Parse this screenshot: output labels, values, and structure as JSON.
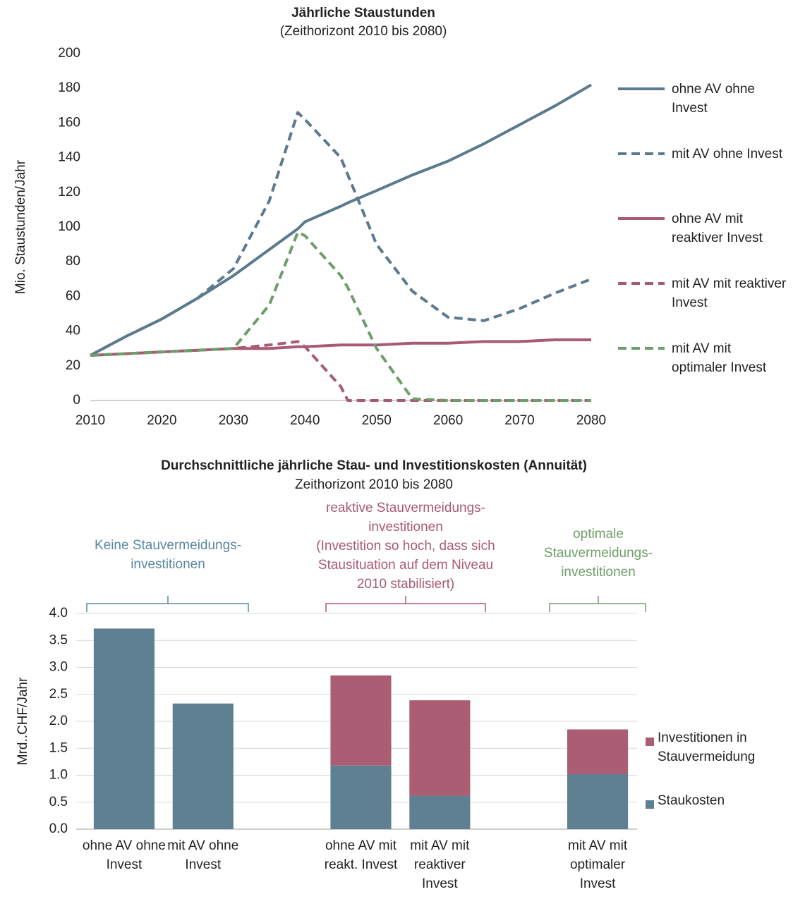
{
  "chart_data": [
    {
      "type": "line",
      "title": "Jährliche Staustunden",
      "subtitle": "(Zeithorizont 2010 bis 2080)",
      "y_label": "Mio. Staustunden/Jahr",
      "x": [
        2010,
        2015,
        2020,
        2025,
        2030,
        2035,
        2039,
        2040,
        2045,
        2046,
        2050,
        2055,
        2060,
        2065,
        2070,
        2075,
        2080
      ],
      "xlim": [
        2010,
        2080
      ],
      "xticks": [
        2010,
        2020,
        2030,
        2040,
        2050,
        2060,
        2070,
        2080
      ],
      "ylim": [
        0,
        200
      ],
      "yticks": [
        0,
        20,
        40,
        60,
        80,
        100,
        120,
        140,
        160,
        180,
        200
      ],
      "grid": false,
      "legend": "right",
      "series": [
        {
          "name": "ohne AV ohne Invest",
          "color": "#5b7a8d",
          "style": "solid",
          "values": [
            26,
            37,
            47,
            59,
            72,
            87,
            99,
            103,
            112,
            114,
            121,
            130,
            138,
            148,
            159,
            170,
            182
          ]
        },
        {
          "name": "mit AV ohne Invest",
          "color": "#5b7a8d",
          "style": "dashed",
          "values": [
            26,
            37,
            47,
            59,
            76,
            115,
            166,
            162,
            140,
            130,
            90,
            63,
            48,
            46,
            53,
            62,
            70
          ]
        },
        {
          "name": "ohne AV mit reaktiver Invest",
          "color": "#a85a73",
          "style": "solid",
          "values": [
            26,
            27,
            28,
            29,
            30,
            30,
            31,
            31,
            32,
            32,
            32,
            33,
            33,
            34,
            34,
            35,
            35
          ]
        },
        {
          "name": "mit AV mit reaktiver Invest",
          "color": "#a85a73",
          "style": "dashed",
          "values": [
            26,
            27,
            28,
            29,
            30,
            32,
            34,
            31,
            8,
            0,
            0,
            0,
            0,
            0,
            0,
            0,
            0
          ]
        },
        {
          "name": "mit AV mit optimaler Invest",
          "color": "#6e9e6a",
          "style": "dashed",
          "values": [
            26,
            27,
            28,
            29,
            30,
            55,
            97,
            95,
            72,
            65,
            30,
            1,
            0,
            0,
            0,
            0,
            0
          ]
        }
      ]
    },
    {
      "type": "stacked_bar",
      "title": "Durchschnittliche jährliche Stau- und Investitionskosten (Annuität)",
      "subtitle": "Zeithorizont 2010 bis 2080",
      "y_label": "Mrd..CHF/Jahr",
      "categories": [
        "ohne AV ohne Invest",
        "mit AV ohne Invest",
        null,
        "ohne AV mit reakt. Invest",
        "mit AV mit reaktiver Invest",
        null,
        "mit AV mit optimaler Invest"
      ],
      "ylim": [
        0,
        4
      ],
      "yticks": [
        {
          "value": 0,
          "label": "0.0"
        },
        {
          "value": 0.5,
          "label": "0.5"
        },
        {
          "value": 1,
          "label": "1.0"
        },
        {
          "value": 1.5,
          "label": "1.5"
        },
        {
          "value": 2,
          "label": "2.0"
        },
        {
          "value": 2.5,
          "label": "2.5"
        },
        {
          "value": 3,
          "label": "3.0"
        },
        {
          "value": 3.5,
          "label": "3.5"
        },
        {
          "value": 4,
          "label": "4.0"
        }
      ],
      "grid": true,
      "legend": "right",
      "series": [
        {
          "name": "Staukosten",
          "color": "#5f7f92",
          "values": [
            3.72,
            2.33,
            null,
            1.18,
            0.62,
            null,
            1.02
          ]
        },
        {
          "name": "Investitionen in Stauvermeidung",
          "color": "#aa5d73",
          "values": [
            0,
            0,
            null,
            1.67,
            1.77,
            null,
            0.83
          ]
        }
      ],
      "annotations": [
        {
          "text": "Keine Stauvermeidungs-\ninvestitionen",
          "color": "#5b87a0"
        },
        {
          "text": "reaktive Stauvermeidungs-\ninvestitionen\n(Investition so hoch, dass sich\nStausituation auf dem Niveau\n2010 stabilisiert)",
          "color": "#a85a73"
        },
        {
          "text": "optimale\nStauvermeidungs-\ninvestitionen",
          "color": "#6e9e6a"
        }
      ]
    }
  ]
}
